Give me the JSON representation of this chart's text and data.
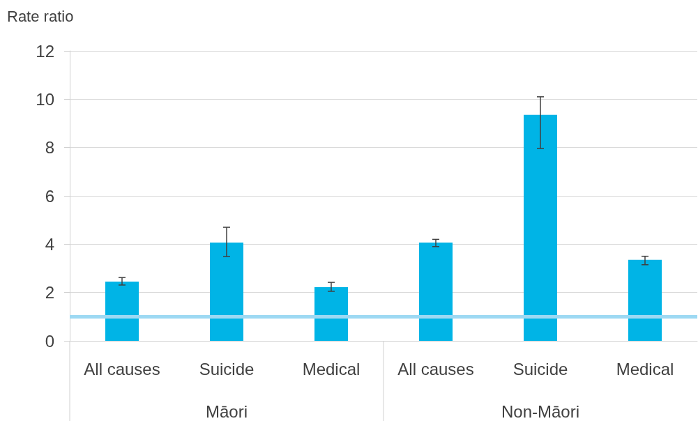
{
  "chart_data": {
    "type": "bar",
    "ylabel": "Rate ratio",
    "categories": [
      "All causes",
      "Suicide",
      "Medical",
      "All causes",
      "Suicide",
      "Medical"
    ],
    "values": [
      2.45,
      4.07,
      2.22,
      4.07,
      9.35,
      3.35
    ],
    "errors": [
      [
        2.31,
        2.62
      ],
      [
        3.49,
        4.7
      ],
      [
        2.05,
        2.42
      ],
      [
        3.9,
        4.2
      ],
      [
        7.96,
        10.1
      ],
      [
        3.15,
        3.5
      ]
    ],
    "color": "#00b4e6",
    "ylim": [
      0,
      12
    ],
    "yticks": [
      0,
      2,
      4,
      6,
      8,
      10,
      12
    ],
    "grid": "y",
    "ref_lines": [
      {
        "axis": "y",
        "value": 1,
        "color": "#9dd9f3"
      }
    ],
    "annotations": [
      "Māori",
      "Non-Māori"
    ]
  }
}
